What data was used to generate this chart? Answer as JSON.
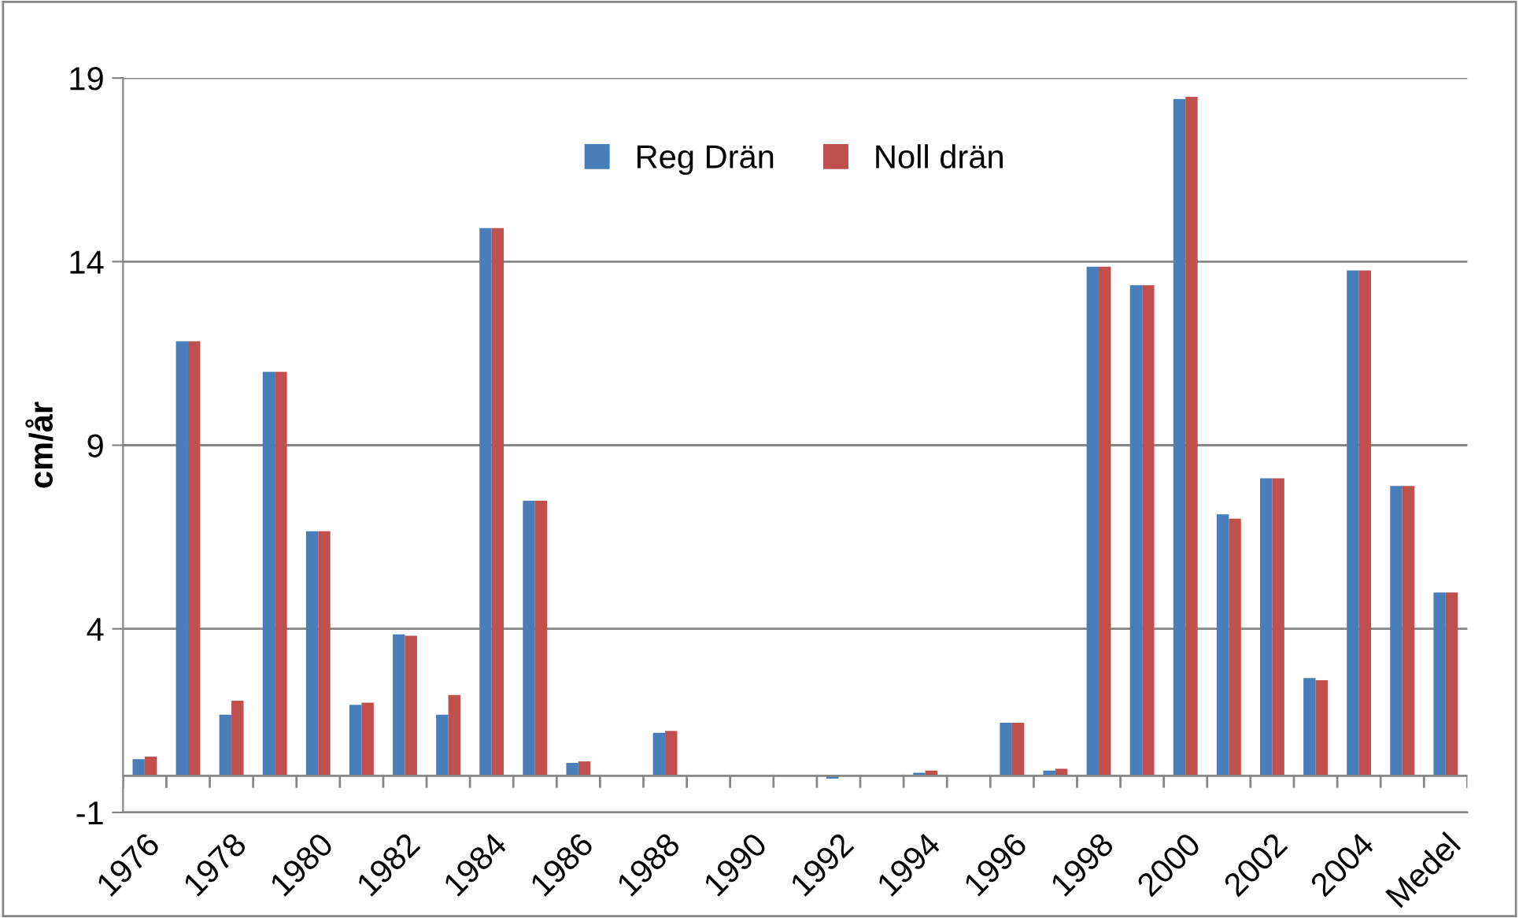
{
  "chart_data": {
    "type": "bar",
    "ylabel": "cm/år",
    "categories": [
      "1976",
      null,
      "1978",
      null,
      "1980",
      null,
      "1982",
      null,
      "1984",
      null,
      "1986",
      null,
      "1988",
      null,
      "1990",
      null,
      "1992",
      null,
      "1994",
      null,
      "1996",
      null,
      "1998",
      null,
      "2000",
      null,
      "2002",
      null,
      "2004",
      null,
      "Medel"
    ],
    "series": [
      {
        "name": "Reg Drän",
        "color": "#4a7ebb",
        "values": [
          0.45,
          11.83,
          1.66,
          11.0,
          6.66,
          1.93,
          3.85,
          1.66,
          14.91,
          7.49,
          0.35,
          0,
          1.17,
          0,
          0,
          0,
          -0.08,
          0,
          0.08,
          0,
          1.44,
          0.14,
          13.86,
          13.36,
          18.43,
          7.12,
          8.1,
          2.66,
          13.76,
          7.89,
          4.99
        ]
      },
      {
        "name": "Noll drän",
        "color": "#c0504d",
        "values": [
          0.52,
          11.83,
          2.04,
          11.0,
          6.66,
          1.99,
          3.81,
          2.2,
          14.91,
          7.49,
          0.39,
          0,
          1.22,
          0,
          0,
          0,
          0,
          0,
          0.14,
          0,
          1.44,
          0.19,
          13.86,
          13.36,
          18.49,
          7.0,
          8.1,
          2.6,
          13.76,
          7.89,
          4.99
        ]
      }
    ],
    "ylim": [
      -1,
      19
    ],
    "yticks": [
      -1,
      4,
      9,
      14,
      19
    ],
    "grid": "y",
    "legend": "top"
  }
}
